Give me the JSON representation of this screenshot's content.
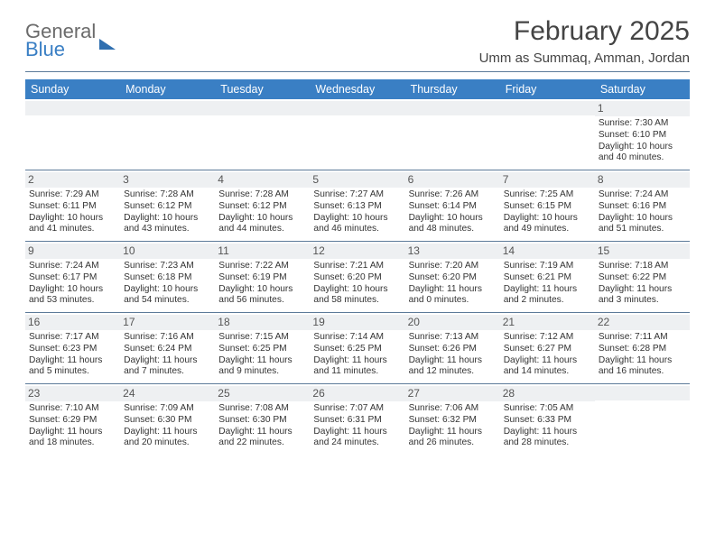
{
  "colors": {
    "header_bg": "#3a7fc4",
    "header_text": "#ffffff",
    "rule": "#5c7a99",
    "daynum_bg": "#eef0f2",
    "body_text": "#333333",
    "logo_grey": "#6b6b6b",
    "logo_blue": "#3a7fc4"
  },
  "logo": {
    "line1": "General",
    "line2": "Blue"
  },
  "title": "February 2025",
  "subtitle": "Umm as Summaq, Amman, Jordan",
  "day_headers": [
    "Sunday",
    "Monday",
    "Tuesday",
    "Wednesday",
    "Thursday",
    "Friday",
    "Saturday"
  ],
  "weeks": [
    [
      {
        "n": "",
        "sunrise": "",
        "sunset": "",
        "dl1": "",
        "dl2": ""
      },
      {
        "n": "",
        "sunrise": "",
        "sunset": "",
        "dl1": "",
        "dl2": ""
      },
      {
        "n": "",
        "sunrise": "",
        "sunset": "",
        "dl1": "",
        "dl2": ""
      },
      {
        "n": "",
        "sunrise": "",
        "sunset": "",
        "dl1": "",
        "dl2": ""
      },
      {
        "n": "",
        "sunrise": "",
        "sunset": "",
        "dl1": "",
        "dl2": ""
      },
      {
        "n": "",
        "sunrise": "",
        "sunset": "",
        "dl1": "",
        "dl2": ""
      },
      {
        "n": "1",
        "sunrise": "Sunrise: 7:30 AM",
        "sunset": "Sunset: 6:10 PM",
        "dl1": "Daylight: 10 hours",
        "dl2": "and 40 minutes."
      }
    ],
    [
      {
        "n": "2",
        "sunrise": "Sunrise: 7:29 AM",
        "sunset": "Sunset: 6:11 PM",
        "dl1": "Daylight: 10 hours",
        "dl2": "and 41 minutes."
      },
      {
        "n": "3",
        "sunrise": "Sunrise: 7:28 AM",
        "sunset": "Sunset: 6:12 PM",
        "dl1": "Daylight: 10 hours",
        "dl2": "and 43 minutes."
      },
      {
        "n": "4",
        "sunrise": "Sunrise: 7:28 AM",
        "sunset": "Sunset: 6:12 PM",
        "dl1": "Daylight: 10 hours",
        "dl2": "and 44 minutes."
      },
      {
        "n": "5",
        "sunrise": "Sunrise: 7:27 AM",
        "sunset": "Sunset: 6:13 PM",
        "dl1": "Daylight: 10 hours",
        "dl2": "and 46 minutes."
      },
      {
        "n": "6",
        "sunrise": "Sunrise: 7:26 AM",
        "sunset": "Sunset: 6:14 PM",
        "dl1": "Daylight: 10 hours",
        "dl2": "and 48 minutes."
      },
      {
        "n": "7",
        "sunrise": "Sunrise: 7:25 AM",
        "sunset": "Sunset: 6:15 PM",
        "dl1": "Daylight: 10 hours",
        "dl2": "and 49 minutes."
      },
      {
        "n": "8",
        "sunrise": "Sunrise: 7:24 AM",
        "sunset": "Sunset: 6:16 PM",
        "dl1": "Daylight: 10 hours",
        "dl2": "and 51 minutes."
      }
    ],
    [
      {
        "n": "9",
        "sunrise": "Sunrise: 7:24 AM",
        "sunset": "Sunset: 6:17 PM",
        "dl1": "Daylight: 10 hours",
        "dl2": "and 53 minutes."
      },
      {
        "n": "10",
        "sunrise": "Sunrise: 7:23 AM",
        "sunset": "Sunset: 6:18 PM",
        "dl1": "Daylight: 10 hours",
        "dl2": "and 54 minutes."
      },
      {
        "n": "11",
        "sunrise": "Sunrise: 7:22 AM",
        "sunset": "Sunset: 6:19 PM",
        "dl1": "Daylight: 10 hours",
        "dl2": "and 56 minutes."
      },
      {
        "n": "12",
        "sunrise": "Sunrise: 7:21 AM",
        "sunset": "Sunset: 6:20 PM",
        "dl1": "Daylight: 10 hours",
        "dl2": "and 58 minutes."
      },
      {
        "n": "13",
        "sunrise": "Sunrise: 7:20 AM",
        "sunset": "Sunset: 6:20 PM",
        "dl1": "Daylight: 11 hours",
        "dl2": "and 0 minutes."
      },
      {
        "n": "14",
        "sunrise": "Sunrise: 7:19 AM",
        "sunset": "Sunset: 6:21 PM",
        "dl1": "Daylight: 11 hours",
        "dl2": "and 2 minutes."
      },
      {
        "n": "15",
        "sunrise": "Sunrise: 7:18 AM",
        "sunset": "Sunset: 6:22 PM",
        "dl1": "Daylight: 11 hours",
        "dl2": "and 3 minutes."
      }
    ],
    [
      {
        "n": "16",
        "sunrise": "Sunrise: 7:17 AM",
        "sunset": "Sunset: 6:23 PM",
        "dl1": "Daylight: 11 hours",
        "dl2": "and 5 minutes."
      },
      {
        "n": "17",
        "sunrise": "Sunrise: 7:16 AM",
        "sunset": "Sunset: 6:24 PM",
        "dl1": "Daylight: 11 hours",
        "dl2": "and 7 minutes."
      },
      {
        "n": "18",
        "sunrise": "Sunrise: 7:15 AM",
        "sunset": "Sunset: 6:25 PM",
        "dl1": "Daylight: 11 hours",
        "dl2": "and 9 minutes."
      },
      {
        "n": "19",
        "sunrise": "Sunrise: 7:14 AM",
        "sunset": "Sunset: 6:25 PM",
        "dl1": "Daylight: 11 hours",
        "dl2": "and 11 minutes."
      },
      {
        "n": "20",
        "sunrise": "Sunrise: 7:13 AM",
        "sunset": "Sunset: 6:26 PM",
        "dl1": "Daylight: 11 hours",
        "dl2": "and 12 minutes."
      },
      {
        "n": "21",
        "sunrise": "Sunrise: 7:12 AM",
        "sunset": "Sunset: 6:27 PM",
        "dl1": "Daylight: 11 hours",
        "dl2": "and 14 minutes."
      },
      {
        "n": "22",
        "sunrise": "Sunrise: 7:11 AM",
        "sunset": "Sunset: 6:28 PM",
        "dl1": "Daylight: 11 hours",
        "dl2": "and 16 minutes."
      }
    ],
    [
      {
        "n": "23",
        "sunrise": "Sunrise: 7:10 AM",
        "sunset": "Sunset: 6:29 PM",
        "dl1": "Daylight: 11 hours",
        "dl2": "and 18 minutes."
      },
      {
        "n": "24",
        "sunrise": "Sunrise: 7:09 AM",
        "sunset": "Sunset: 6:30 PM",
        "dl1": "Daylight: 11 hours",
        "dl2": "and 20 minutes."
      },
      {
        "n": "25",
        "sunrise": "Sunrise: 7:08 AM",
        "sunset": "Sunset: 6:30 PM",
        "dl1": "Daylight: 11 hours",
        "dl2": "and 22 minutes."
      },
      {
        "n": "26",
        "sunrise": "Sunrise: 7:07 AM",
        "sunset": "Sunset: 6:31 PM",
        "dl1": "Daylight: 11 hours",
        "dl2": "and 24 minutes."
      },
      {
        "n": "27",
        "sunrise": "Sunrise: 7:06 AM",
        "sunset": "Sunset: 6:32 PM",
        "dl1": "Daylight: 11 hours",
        "dl2": "and 26 minutes."
      },
      {
        "n": "28",
        "sunrise": "Sunrise: 7:05 AM",
        "sunset": "Sunset: 6:33 PM",
        "dl1": "Daylight: 11 hours",
        "dl2": "and 28 minutes."
      },
      {
        "n": "",
        "sunrise": "",
        "sunset": "",
        "dl1": "",
        "dl2": ""
      }
    ]
  ]
}
